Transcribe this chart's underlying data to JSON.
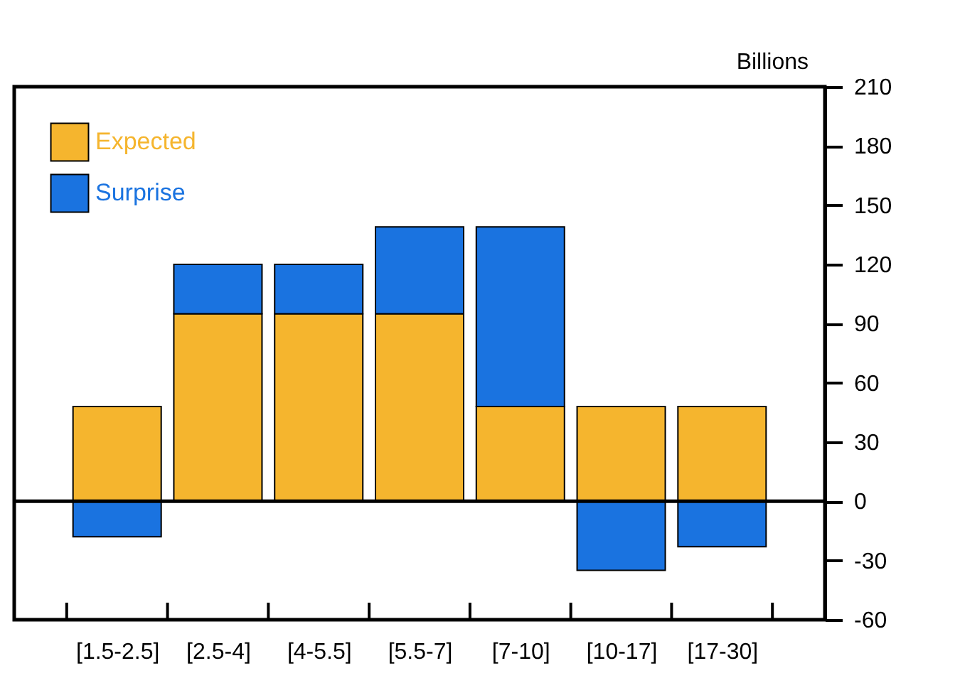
{
  "chart_data": {
    "type": "bar",
    "stacked": true,
    "ylabel": "Billions",
    "categories": [
      "[1.5-2.5]",
      "[2.5-4]",
      "[4-5.5]",
      "[5.5-7]",
      "[7-10]",
      "[10-17]",
      "[17-30]"
    ],
    "series": [
      {
        "name": "Expected",
        "color": "#f5b52e",
        "values": [
          48,
          95,
          95,
          95,
          48,
          48,
          48
        ]
      },
      {
        "name": "Surprise",
        "color": "#1a73e0",
        "values": [
          -18,
          25,
          25,
          44,
          91,
          -35,
          -23
        ]
      }
    ],
    "ylim": [
      -60,
      210
    ],
    "yticks": [
      -60,
      -30,
      0,
      30,
      60,
      90,
      120,
      150,
      180,
      210
    ],
    "ref_lines": [
      {
        "axis": "y",
        "value": 0,
        "color": "#000000"
      }
    ],
    "grid": false,
    "legend": "top left"
  }
}
